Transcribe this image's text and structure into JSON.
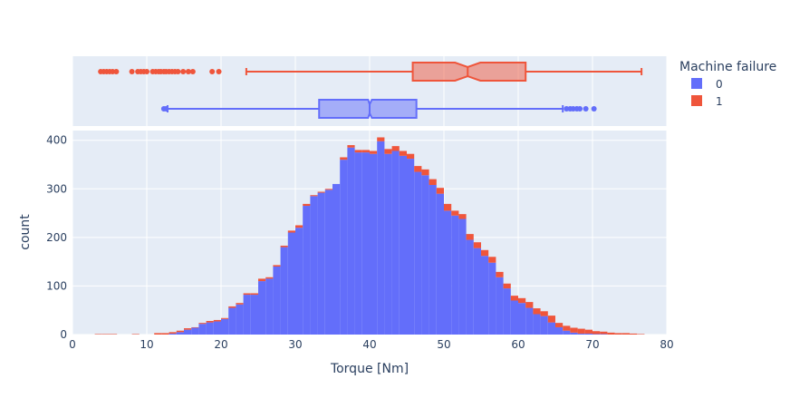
{
  "colors": {
    "failure_0": "#636efa",
    "failure_1": "#ef553b",
    "plot_bg": "#e5ecf6",
    "grid": "#ffffff",
    "text": "#2a3f5f"
  },
  "chart_data": {
    "type": "bar",
    "subtype": "stacked-histogram-with-marginal-box",
    "xlabel": "Torque [Nm]",
    "ylabel": "count",
    "xlim": [
      0,
      80
    ],
    "ylim": [
      0,
      420
    ],
    "x_ticks": [
      0,
      10,
      20,
      30,
      40,
      50,
      60,
      70,
      80
    ],
    "y_ticks": [
      0,
      100,
      200,
      300,
      400
    ],
    "grid": true,
    "legend": {
      "title": "Machine failure",
      "position": "top-right",
      "entries": [
        "0",
        "1"
      ]
    },
    "bin_width": 1,
    "bin_start": 3,
    "series": [
      {
        "name": "0",
        "values": [
          0,
          0,
          0,
          0,
          0,
          0,
          0,
          0,
          0,
          0,
          2,
          5,
          10,
          14,
          22,
          25,
          27,
          32,
          55,
          62,
          82,
          82,
          110,
          115,
          140,
          180,
          210,
          220,
          265,
          285,
          292,
          298,
          310,
          360,
          385,
          375,
          375,
          372,
          398,
          372,
          378,
          368,
          362,
          335,
          328,
          308,
          290,
          255,
          245,
          238,
          195,
          178,
          162,
          148,
          118,
          95,
          70,
          65,
          55,
          42,
          38,
          25,
          15,
          8,
          4,
          2,
          2,
          1,
          1,
          0,
          0,
          0,
          0,
          0
        ],
        "box": {
          "lowerfence": 12.8,
          "q1": 33.2,
          "median": 40.0,
          "q3": 46.3,
          "upperfence": 66.0,
          "notch_low": 39.8,
          "notch_high": 40.3,
          "outliers": [
            12.3,
            12.6,
            66.5,
            67.0,
            67.4,
            67.9,
            68.3,
            69.1,
            70.2
          ]
        }
      },
      {
        "name": "1",
        "values": [
          1,
          1,
          1,
          0,
          0,
          1,
          0,
          0,
          3,
          3,
          3,
          3,
          3,
          1,
          2,
          3,
          3,
          2,
          3,
          3,
          3,
          3,
          5,
          3,
          3,
          3,
          4,
          5,
          4,
          2,
          2,
          2,
          0,
          5,
          5,
          5,
          5,
          6,
          8,
          10,
          10,
          10,
          10,
          12,
          12,
          12,
          12,
          14,
          10,
          10,
          12,
          12,
          12,
          12,
          11,
          10,
          10,
          10,
          12,
          12,
          10,
          14,
          9,
          10,
          10,
          10,
          8,
          6,
          5,
          4,
          3,
          3,
          2,
          1
        ],
        "box": {
          "lowerfence": 23.4,
          "q1": 45.8,
          "median": 53.2,
          "q3": 61.0,
          "upperfence": 76.6,
          "notch_low": 51.5,
          "notch_high": 54.9,
          "outliers": [
            3.8,
            4.2,
            4.6,
            5.0,
            5.4,
            5.9,
            8.0,
            8.8,
            9.2,
            9.6,
            10.0,
            10.8,
            11.2,
            11.6,
            11.9,
            12.3,
            12.6,
            13.0,
            13.4,
            13.8,
            14.2,
            14.9,
            15.6,
            16.2,
            18.8,
            19.7
          ]
        }
      }
    ]
  }
}
